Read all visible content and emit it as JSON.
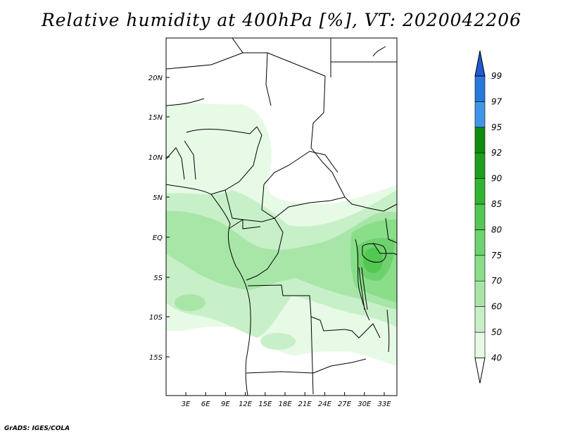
{
  "title": "Relative humidity at 400hPa [%], VT: 2020042206",
  "credit": "GrADS: IGES/COLA",
  "map": {
    "lat_labels": [
      "20N",
      "15N",
      "10N",
      "5N",
      "EQ",
      "5S",
      "10S",
      "15S"
    ],
    "lon_labels": [
      "3E",
      "6E",
      "9E",
      "12E",
      "15E",
      "18E",
      "21E",
      "24E",
      "27E",
      "30E",
      "33E"
    ]
  },
  "colorbar": {
    "levels": [
      "40",
      "50",
      "60",
      "70",
      "75",
      "80",
      "85",
      "90",
      "92",
      "95",
      "97",
      "99"
    ],
    "colors": [
      "#ffffff",
      "#e6fae6",
      "#c8f0c8",
      "#a8e6a8",
      "#8ade8a",
      "#6ed26e",
      "#52c852",
      "#32b432",
      "#1ea01e",
      "#0f8c0f",
      "#4096e6",
      "#2878dc",
      "#1e5ad2"
    ]
  }
}
